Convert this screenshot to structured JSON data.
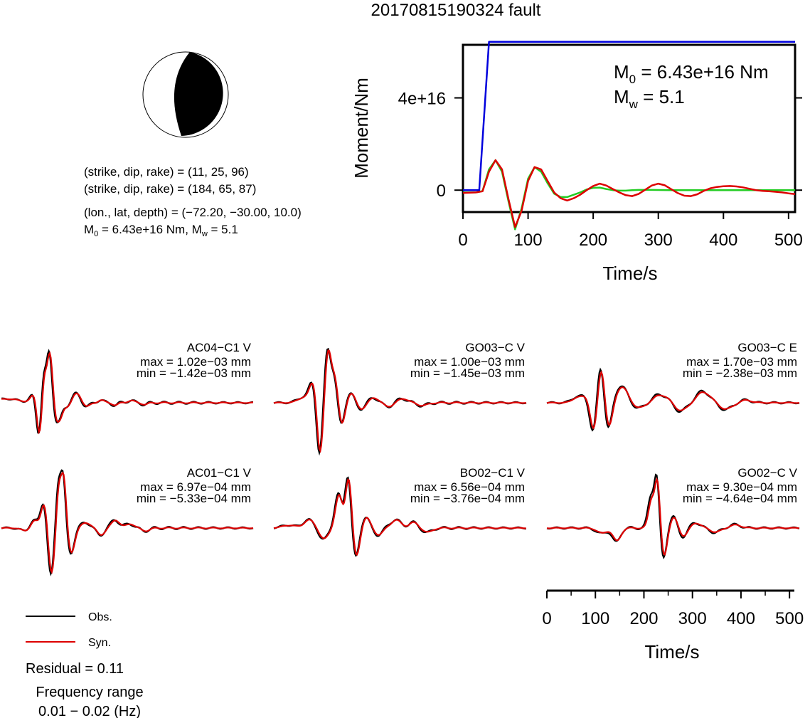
{
  "title": "20170815190324 fault",
  "source_info": {
    "planes": [
      "(strike, dip, rake) = (11, 25, 96)",
      "(strike, dip, rake) = (184, 65, 87)"
    ],
    "location": "(lon., lat, depth) = (−72.20, −30.00, 10.0)",
    "moment_line": {
      "m0": "6.43e+16 Nm",
      "mw": "5.1"
    }
  },
  "chart_data": [
    {
      "type": "line",
      "id": "moment",
      "xlabel": "Time/s",
      "ylabel": "Moment/Nm",
      "xlim": [
        0,
        510
      ],
      "ylim": [
        -9500000000000000.0,
        6.3e+16
      ],
      "xticks": [
        0,
        100,
        200,
        300,
        400,
        500
      ],
      "yticks": [
        0,
        4e+16
      ],
      "ytick_labels": [
        "0",
        "4e+16"
      ],
      "annotation": {
        "m0": "6.43e+16 Nm",
        "mw": "5.1"
      },
      "series": [
        {
          "color": "#0000dd",
          "x": [
            0,
            25,
            40,
            510
          ],
          "y": [
            0,
            0,
            6.43e+16,
            6.43e+16
          ]
        },
        {
          "color": "#22cc22",
          "x": [
            0,
            20,
            30,
            40,
            50,
            60,
            70,
            80,
            90,
            100,
            110,
            120,
            130,
            140,
            150,
            160,
            170,
            180,
            190,
            200,
            210,
            220,
            230,
            240,
            250,
            260,
            270,
            280,
            290,
            300,
            320,
            340,
            360,
            380,
            400,
            420,
            440,
            460,
            480,
            500,
            510
          ],
          "y": [
            -1000000000000000.0,
            -1000000000000000.0,
            -400000000000000.0,
            9000000000000000.0,
            1.3e+16,
            8000000000000000.0,
            -5000000000000000.0,
            -1.7e+16,
            -8000000000000000.0,
            5000000000000000.0,
            1e+16,
            8000000000000000.0,
            3000000000000000.0,
            -1500000000000000.0,
            -3000000000000000.0,
            -3000000000000000.0,
            -2000000000000000.0,
            -1000000000000000.0,
            300000000000000.0,
            1000000000000000.0,
            1100000000000000.0,
            500000000000000.0,
            0,
            -200000000000000.0,
            -200000000000000.0,
            0,
            100000000000000.0,
            100000000000000.0,
            100000000000000.0,
            50000000000000.0,
            0,
            0,
            0,
            0,
            0,
            0,
            0,
            0,
            0,
            0,
            0
          ]
        },
        {
          "color": "#dd0000",
          "x": [
            0,
            20,
            30,
            40,
            50,
            60,
            70,
            80,
            90,
            100,
            110,
            120,
            130,
            140,
            150,
            160,
            170,
            180,
            190,
            200,
            210,
            220,
            230,
            240,
            250,
            260,
            270,
            280,
            290,
            300,
            310,
            320,
            330,
            340,
            350,
            360,
            370,
            380,
            390,
            400,
            410,
            420,
            430,
            440,
            450,
            460,
            470,
            480,
            490,
            500,
            510
          ],
          "y": [
            -1200000000000000.0,
            -1000000000000000.0,
            -500000000000000.0,
            8000000000000000.0,
            1.3e+16,
            9000000000000000.0,
            -4000000000000000.0,
            -1.6e+16,
            -9000000000000000.0,
            4000000000000000.0,
            1e+16,
            9000000000000000.0,
            4000000000000000.0,
            -1000000000000000.0,
            -3500000000000000.0,
            -4500000000000000.0,
            -3500000000000000.0,
            -2000000000000000.0,
            0,
            1800000000000000.0,
            2800000000000000.0,
            2000000000000000.0,
            500000000000000.0,
            -1000000000000000.0,
            -2200000000000000.0,
            -2600000000000000.0,
            -1600000000000000.0,
            200000000000000.0,
            2000000000000000.0,
            2800000000000000.0,
            2100000000000000.0,
            400000000000000.0,
            -1300000000000000.0,
            -2400000000000000.0,
            -2600000000000000.0,
            -1800000000000000.0,
            -300000000000000.0,
            800000000000000.0,
            1400000000000000.0,
            1700000000000000.0,
            1800000000000000.0,
            1600000000000000.0,
            1200000000000000.0,
            600000000000000.0,
            0,
            -300000000000000.0,
            -500000000000000.0,
            -700000000000000.0,
            -1000000000000000.0,
            -1400000000000000.0,
            -1700000000000000.0
          ]
        }
      ]
    },
    {
      "type": "line",
      "id": "waveforms",
      "xlabel": "Time/s",
      "xlim": [
        0,
        510
      ],
      "xticks": [
        0,
        100,
        200,
        300,
        400,
        500
      ],
      "legend": {
        "position": "bottom-left",
        "entries": [
          {
            "label": "Obs.",
            "color": "#000000"
          },
          {
            "label": "Syn.",
            "color": "#dd0000"
          }
        ]
      },
      "residual": "Residual = 0.11",
      "frequency_range": {
        "title": "Frequency range",
        "value": "0.01 − 0.02 (Hz)"
      },
      "stations": [
        {
          "name": "AC04−C1 V",
          "max": "max = 1.02e−03 mm",
          "min": "min = −1.42e−03 mm",
          "obs_scale": 1.0,
          "syn_scale": 0.97,
          "pulses": [
            [
              10,
              25,
              0.07
            ],
            [
              65,
              7,
              0.15
            ],
            [
              75,
              5,
              -0.6
            ],
            [
              85,
              4,
              0.4
            ],
            [
              97,
              6,
              0.95
            ],
            [
              108,
              6,
              -0.35
            ],
            [
              118,
              5,
              -0.2
            ],
            [
              133,
              9,
              -0.1
            ],
            [
              150,
              10,
              0.18
            ],
            [
              170,
              8,
              -0.08
            ],
            [
              200,
              6,
              0.05
            ],
            [
              230,
              6,
              -0.04
            ],
            [
              260,
              7,
              0.04
            ],
            [
              290,
              6,
              -0.03
            ]
          ]
        },
        {
          "name": "GO03−C V",
          "max": "max = 1.00e−03 mm",
          "min": "min = −1.45e−03 mm",
          "obs_scale": 1.0,
          "syn_scale": 0.97,
          "pulses": [
            [
              60,
              12,
              0.1
            ],
            [
              78,
              7,
              0.35
            ],
            [
              92,
              6,
              -0.95
            ],
            [
              108,
              6,
              0.9
            ],
            [
              122,
              7,
              0.5
            ],
            [
              135,
              7,
              -0.45
            ],
            [
              155,
              9,
              0.18
            ],
            [
              175,
              10,
              -0.12
            ],
            [
              200,
              9,
              0.1
            ],
            [
              230,
              10,
              -0.06
            ],
            [
              260,
              9,
              0.08
            ],
            [
              300,
              10,
              -0.05
            ]
          ]
        },
        {
          "name": "GO03−C E",
          "max": "max = 1.70e−03 mm",
          "min": "min = −2.38e−03 mm",
          "obs_scale": 1.0,
          "syn_scale": 0.92,
          "pulses": [
            [
              60,
              10,
              0.1
            ],
            [
              80,
              9,
              0.12
            ],
            [
              95,
              8,
              -0.7
            ],
            [
              108,
              8,
              0.9
            ],
            [
              122,
              8,
              -0.6
            ],
            [
              150,
              12,
              0.3
            ],
            [
              185,
              12,
              -0.1
            ],
            [
              230,
              15,
              0.15
            ],
            [
              270,
              14,
              -0.15
            ],
            [
              315,
              15,
              0.2
            ],
            [
              360,
              14,
              -0.12
            ],
            [
              400,
              12,
              0.05
            ]
          ]
        },
        {
          "name": "AC01−C1 V",
          "max": "max = 6.97e−04 mm",
          "min": "min = −5.33e−04 mm",
          "obs_scale": 1.0,
          "syn_scale": 0.95,
          "pulses": [
            [
              50,
              10,
              -0.06
            ],
            [
              65,
              8,
              0.15
            ],
            [
              85,
              6,
              0.45
            ],
            [
              100,
              6,
              -0.85
            ],
            [
              115,
              5,
              0.75
            ],
            [
              125,
              5,
              0.9
            ],
            [
              140,
              7,
              -0.45
            ],
            [
              170,
              9,
              0.1
            ],
            [
              200,
              8,
              -0.12
            ],
            [
              230,
              8,
              0.15
            ],
            [
              260,
              8,
              0.08
            ],
            [
              290,
              9,
              -0.05
            ]
          ]
        },
        {
          "name": "BO02−C1 V",
          "max": "max = 6.56e−04 mm",
          "min": "min = −3.76e−04 mm",
          "obs_scale": 1.0,
          "syn_scale": 0.95,
          "pulses": [
            [
              30,
              14,
              0.05
            ],
            [
              70,
              10,
              0.15
            ],
            [
              100,
              9,
              -0.2
            ],
            [
              130,
              7,
              0.6
            ],
            [
              150,
              6,
              0.95
            ],
            [
              165,
              7,
              -0.55
            ],
            [
              185,
              8,
              0.2
            ],
            [
              210,
              9,
              -0.12
            ],
            [
              245,
              10,
              0.15
            ],
            [
              280,
              9,
              0.1
            ],
            [
              310,
              9,
              -0.08
            ]
          ]
        },
        {
          "name": "GO02−C V",
          "max": "max = 9.30e−04 mm",
          "min": "min = −4.64e−04 mm",
          "obs_scale": 1.0,
          "syn_scale": 0.9,
          "pulses": [
            [
              110,
              10,
              -0.1
            ],
            [
              140,
              8,
              -0.25
            ],
            [
              210,
              6,
              0.55
            ],
            [
              222,
              5,
              0.9
            ],
            [
              235,
              6,
              -0.55
            ],
            [
              255,
              7,
              0.2
            ],
            [
              275,
              8,
              -0.15
            ],
            [
              300,
              9,
              0.1
            ],
            [
              340,
              10,
              -0.08
            ],
            [
              380,
              11,
              0.06
            ]
          ]
        }
      ]
    }
  ]
}
